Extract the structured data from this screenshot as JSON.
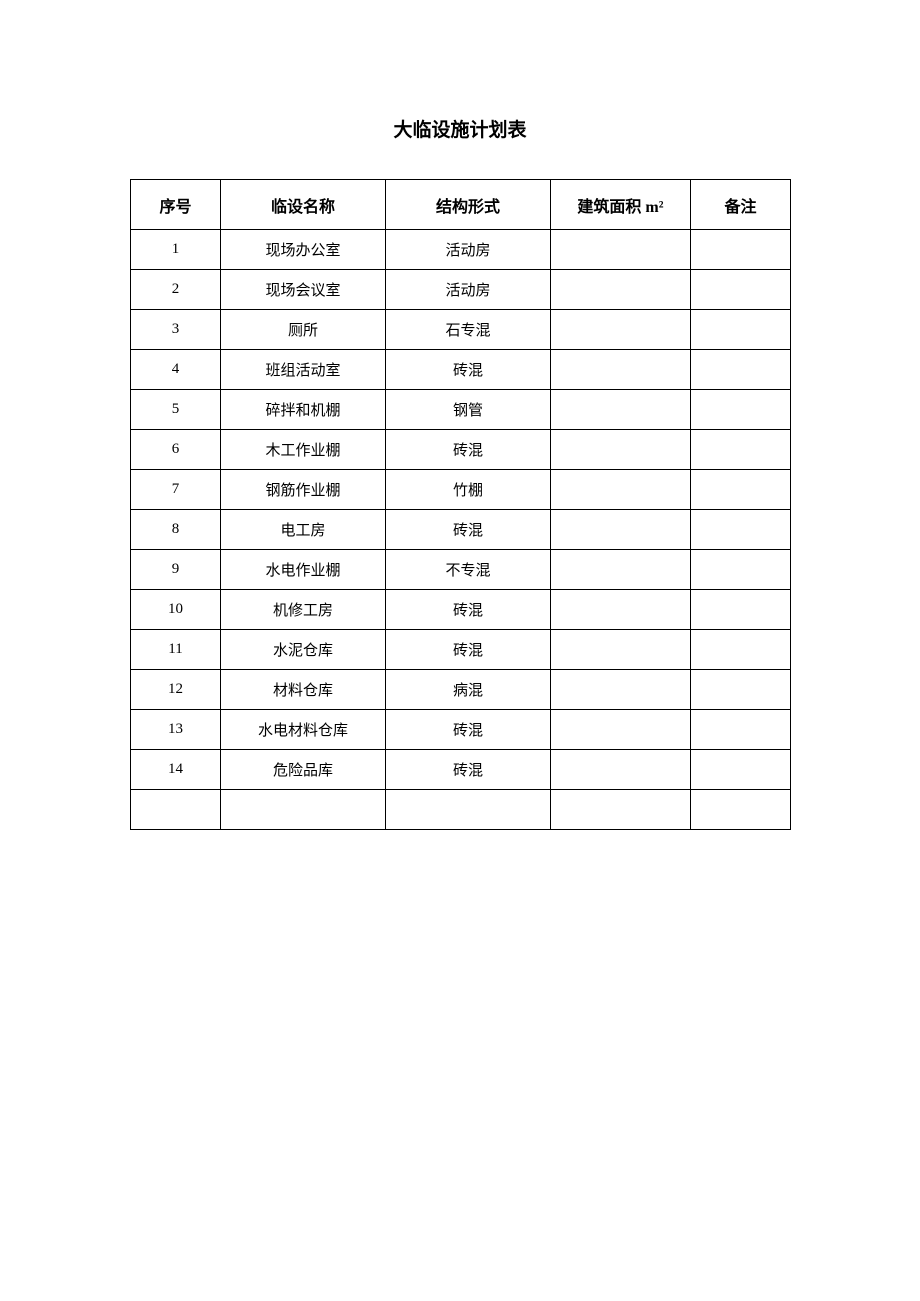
{
  "title": "大临设施计划表",
  "table": {
    "columns": [
      "序号",
      "临设名称",
      "结构形式",
      "建筑面积 m²",
      "备注"
    ],
    "rows": [
      {
        "seq": "1",
        "name": "现场办公室",
        "struct": "活动房",
        "area": "",
        "remark": ""
      },
      {
        "seq": "2",
        "name": "现场会议室",
        "struct": "活动房",
        "area": "",
        "remark": ""
      },
      {
        "seq": "3",
        "name": "厕所",
        "struct": "石专混",
        "area": "",
        "remark": ""
      },
      {
        "seq": "4",
        "name": "班组活动室",
        "struct": "砖混",
        "area": "",
        "remark": ""
      },
      {
        "seq": "5",
        "name": "碎拌和机棚",
        "struct": "钢管",
        "area": "",
        "remark": ""
      },
      {
        "seq": "6",
        "name": "木工作业棚",
        "struct": "砖混",
        "area": "",
        "remark": ""
      },
      {
        "seq": "7",
        "name": "钢筋作业棚",
        "struct": "竹棚",
        "area": "",
        "remark": ""
      },
      {
        "seq": "8",
        "name": "电工房",
        "struct": "砖混",
        "area": "",
        "remark": ""
      },
      {
        "seq": "9",
        "name": "水电作业棚",
        "struct": "不专混",
        "area": "",
        "remark": ""
      },
      {
        "seq": "10",
        "name": "机修工房",
        "struct": "砖混",
        "area": "",
        "remark": ""
      },
      {
        "seq": "11",
        "name": "水泥仓库",
        "struct": "砖混",
        "area": "",
        "remark": ""
      },
      {
        "seq": "12",
        "name": "材料仓库",
        "struct": "病混",
        "area": "",
        "remark": ""
      },
      {
        "seq": "13",
        "name": "水电材料仓库",
        "struct": "砖混",
        "area": "",
        "remark": ""
      },
      {
        "seq": "14",
        "name": "危险品库",
        "struct": "砖混",
        "area": "",
        "remark": ""
      },
      {
        "seq": "",
        "name": "",
        "struct": "",
        "area": "",
        "remark": ""
      }
    ]
  }
}
